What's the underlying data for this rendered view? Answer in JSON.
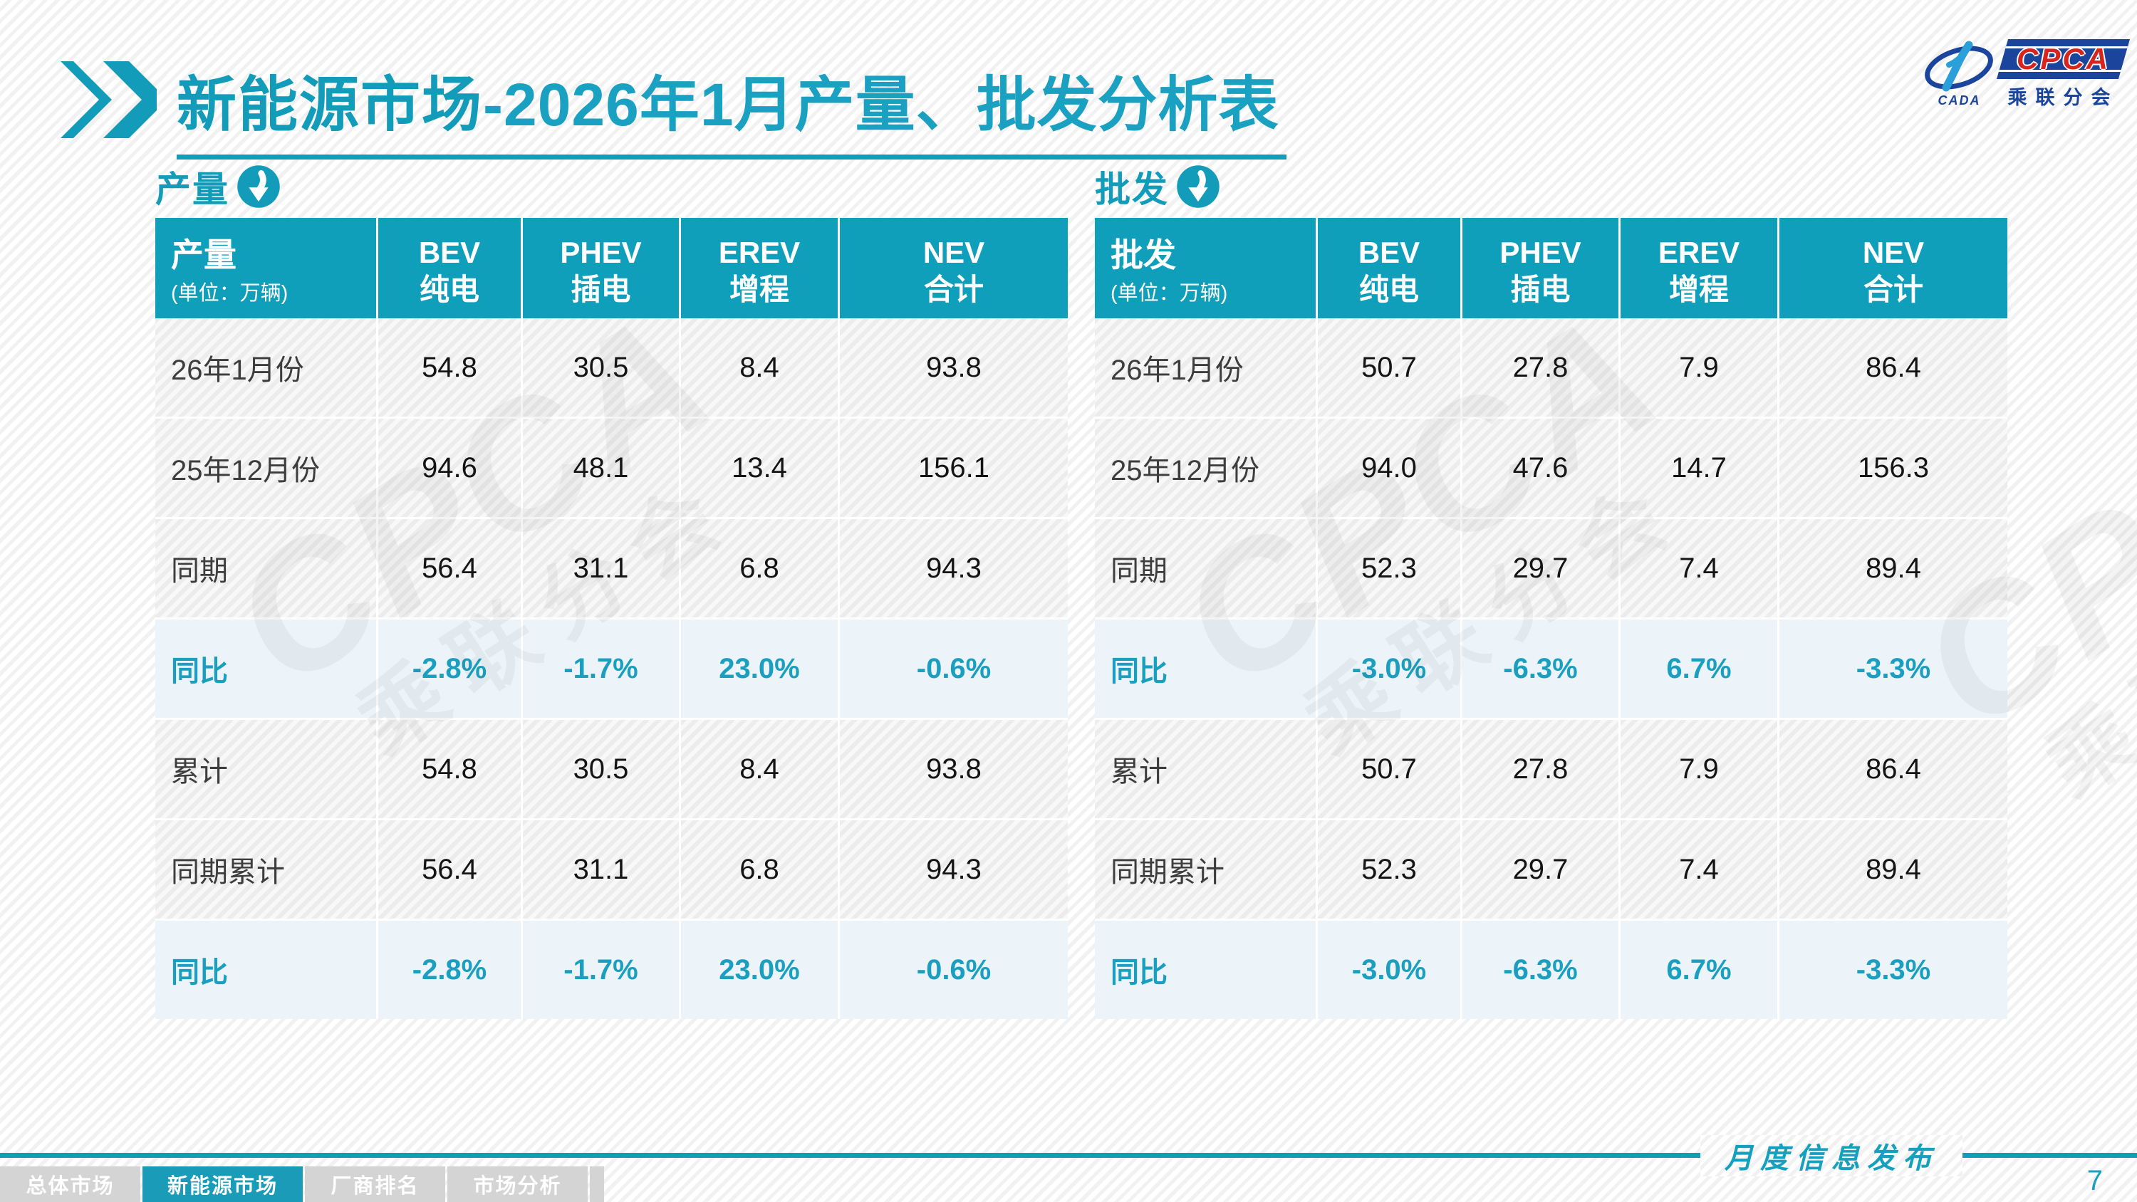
{
  "title": {
    "main": "新能源市场",
    "rest": "-2026年1月产量、批发分析表"
  },
  "logo": {
    "cpca": "CPCA",
    "cada": "CADA",
    "subtitle": "乘联分会"
  },
  "watermark": {
    "text": "CPCA",
    "subtext": "乘联分会"
  },
  "tables": {
    "production": {
      "heading": "产量",
      "unit": "(单位：万辆)",
      "columns": [
        {
          "en": "BEV",
          "cn": "纯电"
        },
        {
          "en": "PHEV",
          "cn": "插电"
        },
        {
          "en": "EREV",
          "cn": "增程"
        },
        {
          "en": "NEV",
          "cn": "合计"
        }
      ],
      "rows": [
        {
          "label": "26年1月份",
          "values": [
            "54.8",
            "30.5",
            "8.4",
            "93.8"
          ],
          "highlight": false
        },
        {
          "label": "25年12月份",
          "values": [
            "94.6",
            "48.1",
            "13.4",
            "156.1"
          ],
          "highlight": false
        },
        {
          "label": "同期",
          "values": [
            "56.4",
            "31.1",
            "6.8",
            "94.3"
          ],
          "highlight": false
        },
        {
          "label": "同比",
          "values": [
            "-2.8%",
            "-1.7%",
            "23.0%",
            "-0.6%"
          ],
          "highlight": true
        },
        {
          "label": "累计",
          "values": [
            "54.8",
            "30.5",
            "8.4",
            "93.8"
          ],
          "highlight": false
        },
        {
          "label": "同期累计",
          "values": [
            "56.4",
            "31.1",
            "6.8",
            "94.3"
          ],
          "highlight": false
        },
        {
          "label": "同比",
          "values": [
            "-2.8%",
            "-1.7%",
            "23.0%",
            "-0.6%"
          ],
          "highlight": true
        }
      ]
    },
    "wholesale": {
      "heading": "批发",
      "unit": "(单位：万辆)",
      "columns": [
        {
          "en": "BEV",
          "cn": "纯电"
        },
        {
          "en": "PHEV",
          "cn": "插电"
        },
        {
          "en": "EREV",
          "cn": "增程"
        },
        {
          "en": "NEV",
          "cn": "合计"
        }
      ],
      "rows": [
        {
          "label": "26年1月份",
          "values": [
            "50.7",
            "27.8",
            "7.9",
            "86.4"
          ],
          "highlight": false
        },
        {
          "label": "25年12月份",
          "values": [
            "94.0",
            "47.6",
            "14.7",
            "156.3"
          ],
          "highlight": false
        },
        {
          "label": "同期",
          "values": [
            "52.3",
            "29.7",
            "7.4",
            "89.4"
          ],
          "highlight": false
        },
        {
          "label": "同比",
          "values": [
            "-3.0%",
            "-6.3%",
            "6.7%",
            "-3.3%"
          ],
          "highlight": true
        },
        {
          "label": "累计",
          "values": [
            "50.7",
            "27.8",
            "7.9",
            "86.4"
          ],
          "highlight": false
        },
        {
          "label": "同期累计",
          "values": [
            "52.3",
            "29.7",
            "7.4",
            "89.4"
          ],
          "highlight": false
        },
        {
          "label": "同比",
          "values": [
            "-3.0%",
            "-6.3%",
            "6.7%",
            "-3.3%"
          ],
          "highlight": true
        }
      ]
    }
  },
  "footer": {
    "tabs": [
      {
        "label": "总体市场",
        "active": false
      },
      {
        "label": "新能源市场",
        "active": true
      },
      {
        "label": "厂商排名",
        "active": false
      },
      {
        "label": "市场分析",
        "active": false
      }
    ],
    "publication": "月度信息发布",
    "page": "7"
  },
  "colors": {
    "accent_teal": "#129cb9",
    "highlight_row_bg": "#ecf4f9",
    "logo_blue": "#1b449c",
    "logo_light_blue": "#2b9fd9",
    "logo_red": "#d6251f",
    "tab_gray": "#d4d4d4"
  }
}
